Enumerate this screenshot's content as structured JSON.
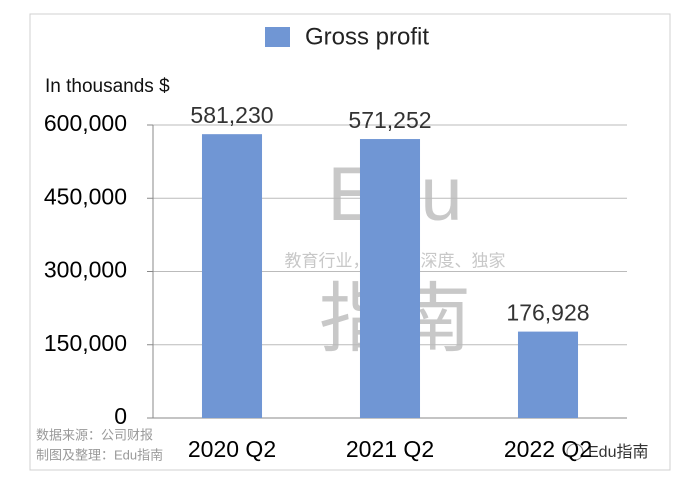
{
  "chart_data": {
    "type": "bar",
    "legend_label": "Gross profit",
    "y_axis_label": "In thousands $",
    "categories": [
      "2020 Q2",
      "2021 Q2",
      "2022 Q2"
    ],
    "series": [
      {
        "name": "Gross profit",
        "color": "#7096d4",
        "values": [
          581230,
          571252,
          176928
        ],
        "value_labels": [
          "581,230",
          "571,252",
          "176,928"
        ]
      }
    ],
    "ylim": [
      0,
      600000
    ],
    "yticks": [
      0,
      {
        "value": 150000,
        "label": "150,000"
      },
      {
        "value": 300000,
        "label": "300,000"
      },
      {
        "value": 450000,
        "label": "450,000"
      },
      {
        "value": 600000,
        "label": "600,000"
      }
    ],
    "grid": true,
    "watermark": [
      "Edu",
      "教育行业，前沿、深度、独家",
      "指南"
    ],
    "source": [
      "数据来源：公司财报",
      "制图及整理：Edu指南"
    ],
    "brand": "Edu指南"
  }
}
